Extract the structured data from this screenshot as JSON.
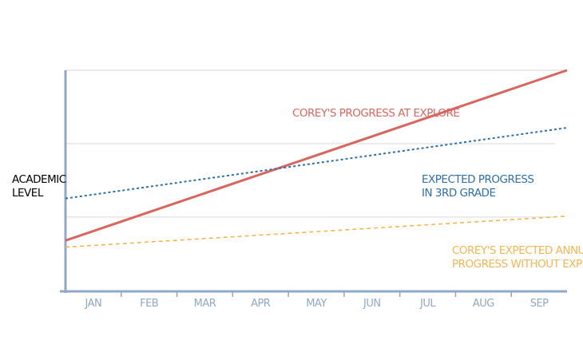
{
  "chart_data": {
    "type": "line",
    "title": "",
    "ylabel": [
      "ACADEMIC",
      "LEVEL"
    ],
    "xlabel": "",
    "categories": [
      "JAN",
      "FEB",
      "MAR",
      "APR",
      "MAY",
      "JUN",
      "JUL",
      "AUG",
      "SEP"
    ],
    "grid": true,
    "ylim": [
      0,
      100
    ],
    "series": [
      {
        "name": "COREY'S PROGRESS AT EXPLORE",
        "label_lines": [
          "COREY'S PROGRESS AT EXPLORE"
        ],
        "style": "solid",
        "color": "#d9665e",
        "start": 23,
        "end": 100
      },
      {
        "name": "EXPECTED PROGRESS IN 3RD GRADE",
        "label_lines": [
          "EXPECTED PROGRESS",
          "IN 3RD GRADE"
        ],
        "style": "dotted",
        "color": "#2f6fab",
        "start": 42,
        "end": 74
      },
      {
        "name": "COREY'S EXPECTED ANNUAL PROGRESS WITHOUT EXPLORE",
        "label_lines": [
          "COREY'S EXPECTED ANNUAL",
          "PROGRESS WITHOUT EXPLORE"
        ],
        "style": "dashed",
        "color": "#f2b655",
        "start": 20,
        "end": 34
      }
    ]
  },
  "colors": {
    "axis": "#8fa8c8",
    "grid": "#d5d9de",
    "tick_label": "#8fa8c8",
    "ylabel": "#000000"
  }
}
